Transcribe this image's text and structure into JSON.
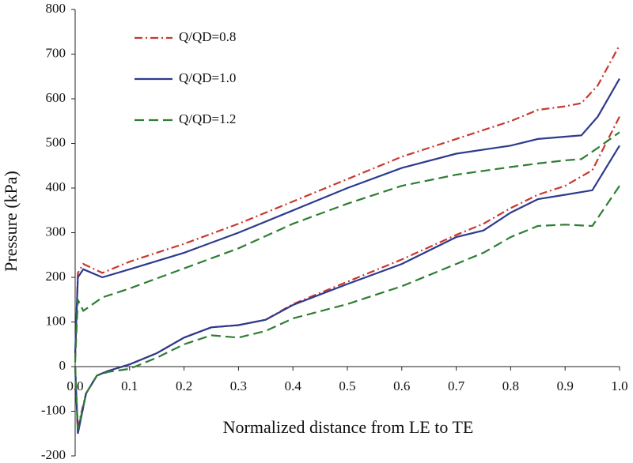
{
  "chart_data": {
    "type": "line",
    "xlabel": "Normalized distance from LE to TE",
    "ylabel": "Pressure (kPa)",
    "x": [
      0,
      0.005,
      0.015,
      0.05,
      0.1,
      0.2,
      0.3,
      0.4,
      0.5,
      0.6,
      0.7,
      0.8,
      0.85,
      0.9,
      0.93,
      0.96,
      1.0,
      null,
      0,
      0.005,
      0.01,
      0.02,
      0.04,
      0.06,
      0.1,
      0.15,
      0.2,
      0.25,
      0.3,
      0.35,
      0.4,
      0.5,
      0.6,
      0.7,
      0.75,
      0.8,
      0.85,
      0.9,
      0.95,
      1.0
    ],
    "series": [
      {
        "name": "Q/QD=0.8",
        "color": "#c8382e",
        "dash": "dashdot",
        "values": [
          20,
          210,
          230,
          210,
          235,
          275,
          320,
          370,
          420,
          470,
          510,
          550,
          575,
          583,
          590,
          630,
          720,
          null,
          0,
          -140,
          -110,
          -60,
          -20,
          -10,
          5,
          30,
          65,
          88,
          93,
          105,
          140,
          190,
          240,
          295,
          320,
          355,
          385,
          405,
          440,
          560
        ]
      },
      {
        "name": "Q/QD=1.0",
        "color": "#2e3a8c",
        "dash": "solid",
        "values": [
          30,
          200,
          218,
          200,
          218,
          255,
          300,
          350,
          400,
          445,
          477,
          495,
          510,
          515,
          518,
          560,
          645,
          null,
          0,
          -150,
          -120,
          -60,
          -20,
          -10,
          5,
          30,
          65,
          88,
          93,
          105,
          138,
          185,
          230,
          290,
          305,
          345,
          375,
          385,
          395,
          495
        ]
      },
      {
        "name": "Q/QD=1.2",
        "color": "#2e7d32",
        "dash": "dashed",
        "values": [
          10,
          150,
          125,
          155,
          175,
          220,
          265,
          320,
          365,
          405,
          430,
          447,
          455,
          462,
          465,
          490,
          525,
          null,
          0,
          -140,
          -115,
          -60,
          -20,
          -12,
          -5,
          20,
          50,
          70,
          65,
          80,
          108,
          140,
          180,
          230,
          255,
          290,
          315,
          318,
          315,
          405
        ]
      }
    ],
    "xlim": [
      0,
      1
    ],
    "xticks": [
      {
        "value": 0,
        "label": "0.0"
      },
      0.1,
      0.2,
      0.3,
      0.4,
      0.5,
      0.6,
      0.7,
      0.8,
      0.9,
      {
        "value": 1,
        "label": "1.0"
      }
    ],
    "ylim": [
      -200,
      800
    ],
    "yticks": [
      -200,
      -100,
      0,
      100,
      200,
      300,
      400,
      500,
      600,
      700,
      800
    ],
    "legend": "upper left"
  }
}
